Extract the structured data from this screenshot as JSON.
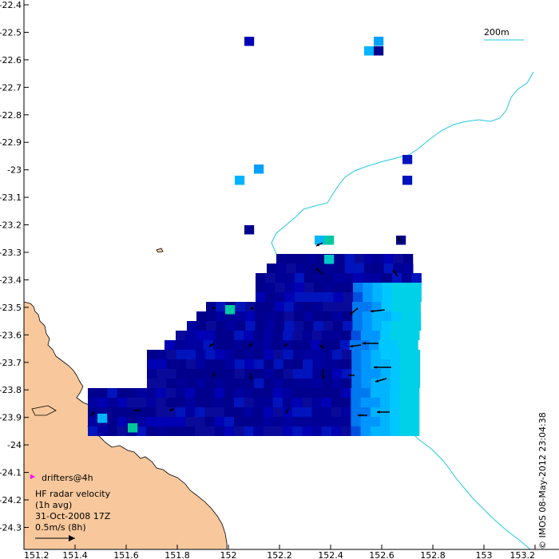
{
  "map": {
    "x_axis": {
      "ticks": [
        "151.2",
        "151.4",
        "151.6",
        "151.8",
        "152",
        "152.2",
        "152.4",
        "152.6",
        "152.8",
        "153",
        "153.2"
      ]
    },
    "y_axis": {
      "ticks": [
        "-22.4",
        "-22.5",
        "-22.6",
        "-22.7",
        "-22.8",
        "-22.9",
        "-23",
        "-23.1",
        "-23.2",
        "-23.3",
        "-23.4",
        "-23.5",
        "-23.6",
        "-23.7",
        "-23.8",
        "-23.9",
        "-24",
        "-24.1",
        "-24.2",
        "-24.3"
      ]
    },
    "extent": {
      "lon": [
        151.2,
        153.2
      ],
      "lat": [
        -24.38,
        -22.4
      ]
    },
    "colors": {
      "land": "#f8c89c",
      "ocean": "#ffffff",
      "isobath": "#22c8e0",
      "velocity_low": "#00008c",
      "velocity_high": "#00c8ff",
      "drifter": "#ff00ff"
    },
    "scale_label": "200m",
    "credit": "© IMOS 08-May-2012 23:04:38",
    "legend": {
      "drifters_label": "drifters@4h",
      "title_line1": "HF radar velocity",
      "title_line2": "(1h avg)",
      "timestamp": "31-Oct-2008 17Z",
      "scale_arrow_label": "0.5m/s (8h)"
    }
  }
}
